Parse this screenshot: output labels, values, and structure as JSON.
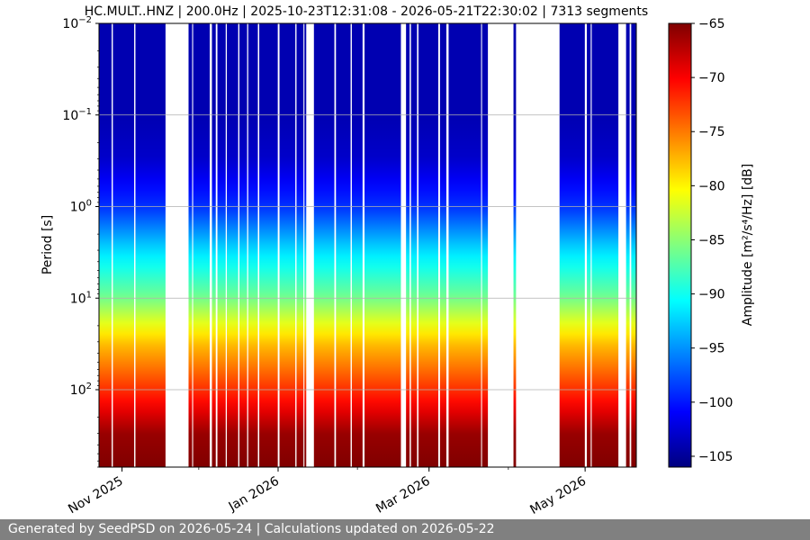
{
  "footer": "Generated by SeedPSD on 2026-05-24 | Calculations updated on 2026-05-22",
  "chart_data": {
    "type": "heatmap",
    "title": "HC.MULT..HNZ | 200.0Hz | 2025-10-23T12:31:08 - 2026-05-21T22:30:02 | 7313 segments",
    "ylabel": "Period [s]",
    "xlabel": "",
    "x_range": [
      "2025-10-23",
      "2026-05-21"
    ],
    "y_scale": "log",
    "y_range": [
      0.01,
      700
    ],
    "y_reversed": true,
    "grid": true,
    "x_ticks": [
      {
        "date": "2025-11-01",
        "label": "Nov 2025"
      },
      {
        "date": "2026-01-01",
        "label": "Jan 2026"
      },
      {
        "date": "2026-03-01",
        "label": "Mar 2026"
      },
      {
        "date": "2026-05-01",
        "label": "May 2026"
      }
    ],
    "y_ticks": [
      {
        "value": 0.01,
        "base": "10",
        "exp": "−2"
      },
      {
        "value": 0.1,
        "base": "10",
        "exp": "−1"
      },
      {
        "value": 1,
        "base": "10",
        "exp": "0"
      },
      {
        "value": 10,
        "base": "10",
        "exp": "1"
      },
      {
        "value": 100,
        "base": "10",
        "exp": "2"
      }
    ],
    "colorbar": {
      "label": "Amplitude [m²/s⁴/Hz] [dB]",
      "min": -106,
      "max": -65,
      "colormap": "jet",
      "ticks": [
        {
          "value": -65,
          "label": "−65"
        },
        {
          "value": -70,
          "label": "−70"
        },
        {
          "value": -75,
          "label": "−75"
        },
        {
          "value": -80,
          "label": "−80"
        },
        {
          "value": -85,
          "label": "−85"
        },
        {
          "value": -90,
          "label": "−90"
        },
        {
          "value": -95,
          "label": "−95"
        },
        {
          "value": -100,
          "label": "−100"
        },
        {
          "value": -105,
          "label": "−105"
        }
      ]
    },
    "data_gaps": [
      [
        "2025-11-18",
        "2025-11-27"
      ],
      [
        "2026-01-12",
        "2026-01-15"
      ],
      [
        "2026-02-18",
        "2026-02-20"
      ],
      [
        "2026-03-24",
        "2026-04-03"
      ],
      [
        "2026-04-04",
        "2026-04-21"
      ],
      [
        "2026-05-14",
        "2026-05-17"
      ]
    ],
    "amplitude_profile": [
      {
        "period": 0.01,
        "db": -104
      },
      {
        "period": 0.1,
        "db": -104
      },
      {
        "period": 0.3,
        "db": -103
      },
      {
        "period": 1,
        "db": -99
      },
      {
        "period": 3,
        "db": -92
      },
      {
        "period": 10,
        "db": -86
      },
      {
        "period": 30,
        "db": -78
      },
      {
        "period": 100,
        "db": -72
      },
      {
        "period": 300,
        "db": -66
      },
      {
        "period": 700,
        "db": -65
      }
    ]
  }
}
